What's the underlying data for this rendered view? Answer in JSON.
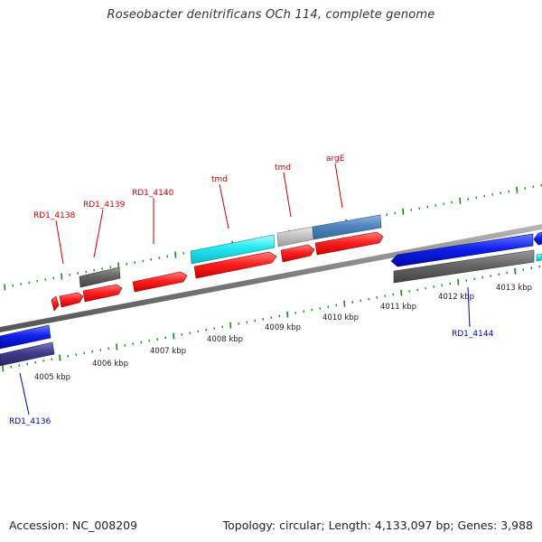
{
  "title": "Roseobacter denitrificans OCh 114, complete genome",
  "footer": {
    "accession": "Accession: NC_008209",
    "info": "Topology: circular; Length: 4,133,097 bp; Genes: 3,988"
  },
  "ruler": {
    "labels": [
      "4005 kbp",
      "4006 kbp",
      "4007 kbp",
      "4008 kbp",
      "4009 kbp",
      "4010 kbp",
      "4011 kbp",
      "4012 kbp",
      "4013 kbp"
    ]
  },
  "gene_labels": {
    "top": [
      "RD1_4138",
      "RD1_4139",
      "RD1_4140",
      "tmd",
      "tmd",
      "argE"
    ],
    "bottom": [
      "RD1_4136",
      "RD1_4144"
    ]
  },
  "colors": {
    "gene_red": "#ff2020",
    "cds_cyan": "#22e8f0",
    "cds_steelblue": "#4f86bf",
    "cds_lightgray": "#c4c4c4",
    "cds_darkgray": "#666666",
    "gene_blue": "#1020ee",
    "cds_slate": "#3e3c8a",
    "label_red": "#cc0000",
    "label_blue": "#0000cc",
    "tick_green": "#1a8a1a",
    "backbone": "#7a7a7a"
  }
}
